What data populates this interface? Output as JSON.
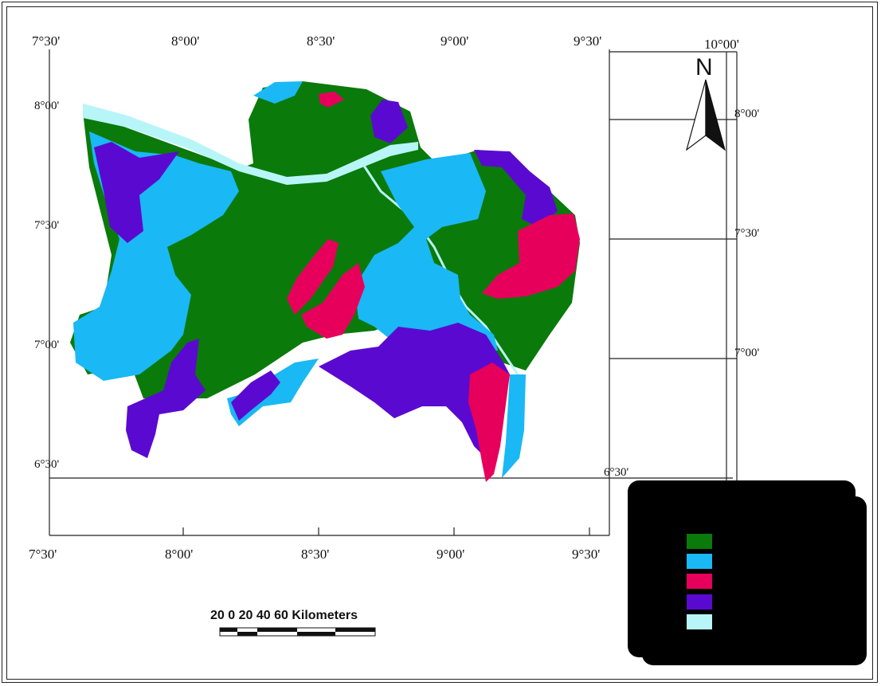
{
  "map": {
    "top_ticks": [
      "7°30'",
      "8°00'",
      "8°30'",
      "9°00'",
      "9°30'",
      "10°00'"
    ],
    "bottom_ticks": [
      "7°30'",
      "8°00'",
      "8°30'",
      "9°00'",
      "9°30'"
    ],
    "left_ticks": [
      "8°00'",
      "7°30'",
      "7°00'",
      "6°30'"
    ],
    "right_ticks": [
      "8°00'",
      "7°30'",
      "7°00'",
      "6°30'"
    ],
    "north_label": "N",
    "scale_bar": {
      "text": "20    0    20    40    60  Kilometers",
      "min_km": -20,
      "max_km": 60
    },
    "colors": {
      "green": "#0a7a0a",
      "light_blue": "#1ab8f5",
      "crimson": "#e6005c",
      "purple": "#5a0ad0",
      "pale_cyan": "#b8f5f8",
      "legend_bg": "#000000"
    },
    "legend": {
      "items": [
        {
          "color": "#0a7a0a",
          "label": ""
        },
        {
          "color": "#1ab8f5",
          "label": ""
        },
        {
          "color": "#e6005c",
          "label": ""
        },
        {
          "color": "#5a0ad0",
          "label": ""
        },
        {
          "color": "#b8f5f8",
          "label": ""
        }
      ]
    }
  }
}
